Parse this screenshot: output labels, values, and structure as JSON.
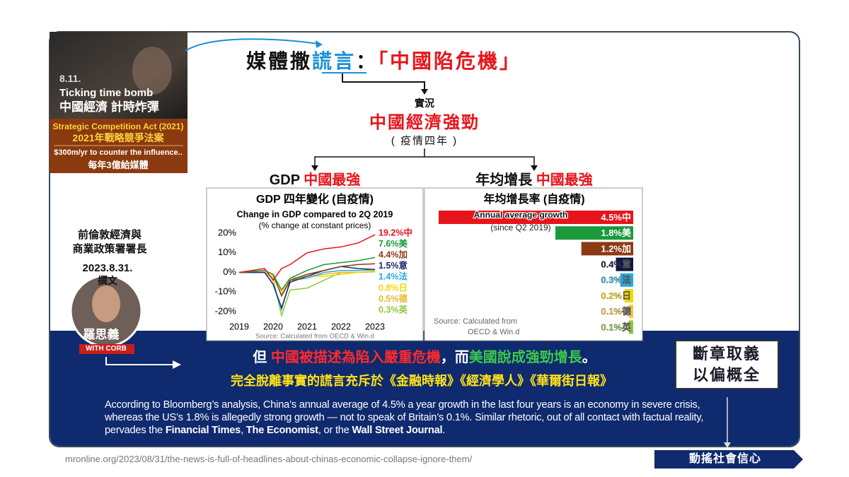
{
  "photo_caption": {
    "date": "8.11.",
    "title": "Ticking time bomb",
    "title_zh": "中國經濟 計時炸彈"
  },
  "act_box": {
    "name": "Strategic Competition Act (2021)",
    "name_zh": "2021年戰略競爭法案",
    "funding": "$300m/yr to counter the influence..",
    "funding_zh": "每年3億給媒體"
  },
  "headline": [
    {
      "text": "媒體撒",
      "color": "#111111"
    },
    {
      "text": "謊言",
      "color": "#1b8fd6"
    },
    {
      "text": "：",
      "color": "#111111"
    },
    {
      "text": "「中國陷危機」",
      "color": "#e8141b"
    }
  ],
  "fact": {
    "label": "實況",
    "claim": "中國經濟強勁",
    "note": "( 疫情四年 )"
  },
  "branches": [
    [
      {
        "text": "GDP ",
        "color": "#111111"
      },
      {
        "text": "中國最強",
        "color": "#e8141b"
      }
    ],
    [
      {
        "text": "年均增長 ",
        "color": "#111111"
      },
      {
        "text": "中國最強",
        "color": "#e8141b"
      }
    ]
  ],
  "author": {
    "lines": [
      "前倫敦經濟與",
      "商業政策署署長"
    ],
    "date": "2023.8.31.",
    "role": "撰文",
    "name": "羅思義",
    "banner": "WITH CORB"
  },
  "summary": {
    "line1": [
      {
        "text": "但 ",
        "color": "#ffffff"
      },
      {
        "text": "中國被描述為陷入嚴重危機",
        "color": "#ff2a2a"
      },
      {
        "text": "，而",
        "color": "#ffffff"
      },
      {
        "text": "美國說成強勁增長",
        "color": "#3cc84a"
      },
      {
        "text": "。",
        "color": "#ffffff"
      }
    ],
    "line2": "完全脫離事實的謊言充斥於《金融時報》《經濟學人》《華爾街日報》",
    "box": [
      "斷章取義",
      "以偏概全"
    ],
    "quote": [
      {
        "text": "According to Bloomberg’s analysis, China’s annual average of 4.5% a year growth in the last four years is an economy in severe crisis, whereas the US’s 1.8% is allegedly strong growth — not to speak of Britain’s 0.1%. Similar rhetoric, out of all contact with factual reality, pervades the ",
        "bold": false
      },
      {
        "text": "Financial Times",
        "bold": true
      },
      {
        "text": ", ",
        "bold": false
      },
      {
        "text": "The Economist",
        "bold": true
      },
      {
        "text": ", or the ",
        "bold": false
      },
      {
        "text": "Wall Street Journal",
        "bold": true
      },
      {
        "text": ".",
        "bold": false
      }
    ],
    "source_url": "mronline.org/2023/08/31/the-news-is-full-of-headlines-about-chinas-economic-collapse-ignore-them/",
    "effect": "動搖社會信心"
  },
  "chart_data": [
    {
      "type": "line",
      "title": "GDP 四年變化 (自疫情)",
      "subtitle": "Change in GDP compared to 2Q 2019",
      "subtitle2": "(% change at constant prices)",
      "source": "Source: Calculated from OECD & Win.d",
      "x": [
        2019,
        2019.75,
        2020,
        2020.25,
        2020.5,
        2021,
        2021.5,
        2022,
        2022.5,
        2023
      ],
      "xlim": [
        2019,
        2023
      ],
      "xticks": [
        2019,
        2020,
        2021,
        2022,
        2023
      ],
      "ylim": [
        -20,
        20
      ],
      "yticks": [
        {
          "value": 20,
          "label": "20%"
        },
        {
          "value": 10,
          "label": "10%"
        },
        {
          "value": 0,
          "label": "0%"
        },
        {
          "value": -10,
          "label": "-10%"
        },
        {
          "value": -20,
          "label": "-20%"
        }
      ],
      "series": [
        {
          "name": "中",
          "color": "#e8141b",
          "end_label": "19.2%中",
          "values": [
            0,
            2,
            -4,
            2,
            4,
            10,
            12,
            13,
            15,
            19.2
          ]
        },
        {
          "name": "美",
          "color": "#1a9a3c",
          "end_label": "7.6%美",
          "values": [
            0,
            1,
            -1,
            -9,
            -3,
            1,
            4,
            5,
            6,
            7.6
          ]
        },
        {
          "name": "加",
          "color": "#8b3a12",
          "end_label": "4.4%加",
          "values": [
            0,
            1,
            -1,
            -12,
            -4,
            -1,
            1,
            3,
            4,
            4.4
          ]
        },
        {
          "name": "意",
          "color": "#1a2a6a",
          "end_label": "1.5%意",
          "values": [
            0,
            0,
            -6,
            -18,
            -5,
            -2,
            1,
            3,
            2,
            1.5
          ]
        },
        {
          "name": "法",
          "color": "#29a8e0",
          "end_label": "1.4%法",
          "values": [
            0,
            0,
            -6,
            -19,
            -4,
            -3,
            0,
            1,
            1,
            1.4
          ]
        },
        {
          "name": "日",
          "color": "#f2d800",
          "end_label": "0.8%日",
          "values": [
            0,
            0,
            -2,
            -9,
            -4,
            -2,
            -2,
            -1,
            0,
            0.8
          ]
        },
        {
          "name": "德",
          "color": "#e8b830",
          "end_label": "0.5%德",
          "values": [
            0,
            0,
            -2,
            -11,
            -3,
            -2,
            -1,
            0,
            0,
            0.5
          ]
        },
        {
          "name": "英",
          "color": "#8fc83c",
          "end_label": "0.3%英",
          "values": [
            0,
            0,
            -3,
            -22,
            -9,
            -8,
            -4,
            0,
            0,
            0.3
          ]
        }
      ]
    },
    {
      "type": "hbar",
      "title": "年均增長率 (自疫情)",
      "annotation": "Annual average growth",
      "annotation2": "(since Q2 2019)",
      "source": "Source:   Calculated from",
      "source2": "OECD & Win.d",
      "values": [
        4.5,
        1.8,
        1.2,
        0.4,
        0.3,
        0.2,
        0.1,
        0.1
      ],
      "value_labels": [
        "4.5%中",
        "1.8%美",
        "1.2%加",
        "0.4%意",
        "0.3%法",
        "0.2%日",
        "0.1%德",
        "0.1%英"
      ],
      "colors": [
        "#e8141b",
        "#1a9a3c",
        "#8b3a12",
        "#0d1540",
        "#29a8e0",
        "#f2d800",
        "#f5c842",
        "#8fc83c"
      ]
    }
  ]
}
